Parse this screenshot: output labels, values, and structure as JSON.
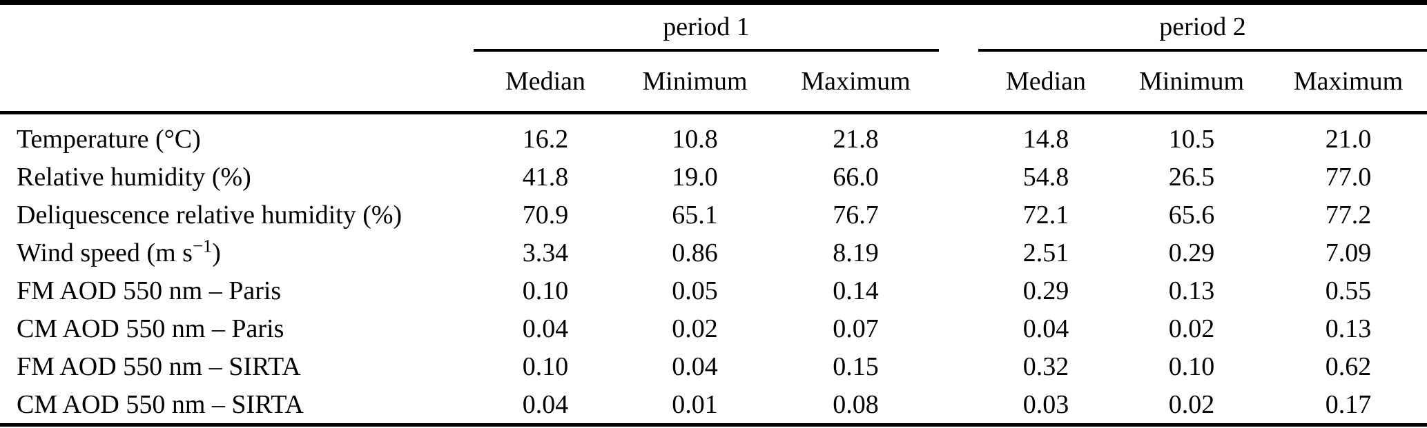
{
  "chart_data": {
    "type": "table",
    "column_groups": [
      {
        "label": "period 1",
        "columns": [
          "Median",
          "Minimum",
          "Maximum"
        ]
      },
      {
        "label": "period 2",
        "columns": [
          "Median",
          "Minimum",
          "Maximum"
        ]
      }
    ],
    "rows": [
      {
        "label": "Temperature (°C)",
        "values": [
          "16.2",
          "10.8",
          "21.8",
          "14.8",
          "10.5",
          "21.0"
        ]
      },
      {
        "label": "Relative humidity (%)",
        "values": [
          "41.8",
          "19.0",
          "66.0",
          "54.8",
          "26.5",
          "77.0"
        ]
      },
      {
        "label": "Deliquescence relative humidity (%)",
        "values": [
          "70.9",
          "65.1",
          "76.7",
          "72.1",
          "65.6",
          "77.2"
        ]
      },
      {
        "label": "Wind speed (m s−1)",
        "label_parts": {
          "pre": "Wind speed (m s",
          "sup": "−1",
          "post": ")"
        },
        "values": [
          "3.34",
          "0.86",
          "8.19",
          "2.51",
          "0.29",
          "7.09"
        ]
      },
      {
        "label": "FM AOD 550 nm – Paris",
        "values": [
          "0.10",
          "0.05",
          "0.14",
          "0.29",
          "0.13",
          "0.55"
        ]
      },
      {
        "label": "CM AOD 550 nm – Paris",
        "values": [
          "0.04",
          "0.02",
          "0.07",
          "0.04",
          "0.02",
          "0.13"
        ]
      },
      {
        "label": "FM AOD 550 nm – SIRTA",
        "values": [
          "0.10",
          "0.04",
          "0.15",
          "0.32",
          "0.10",
          "0.62"
        ]
      },
      {
        "label": "CM AOD 550 nm – SIRTA",
        "values": [
          "0.04",
          "0.01",
          "0.08",
          "0.03",
          "0.02",
          "0.17"
        ]
      }
    ]
  },
  "colors": {
    "text": "#000000",
    "background": "#ffffff",
    "rule": "#000000"
  }
}
